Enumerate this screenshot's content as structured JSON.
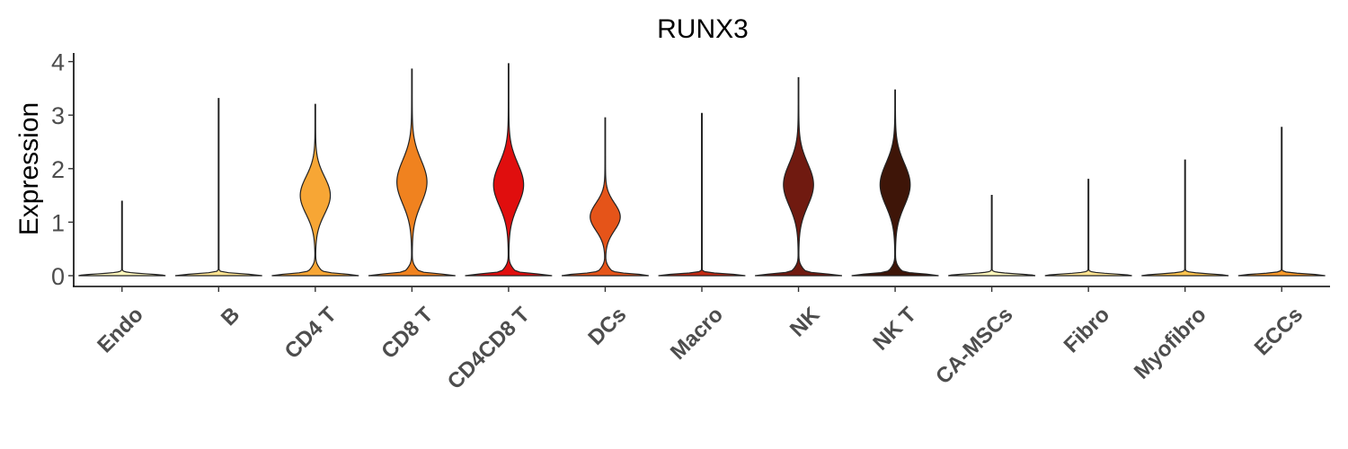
{
  "chart_data": {
    "type": "violin",
    "title": "RUNX3",
    "xlabel": "",
    "ylabel": "Expression",
    "ylim": [
      -0.18,
      4.15
    ],
    "yticks": [
      "0",
      "1",
      "2",
      "3",
      "4"
    ],
    "grid": false,
    "legend": "none",
    "categories": [
      "Endo",
      "B",
      "CD4 T",
      "CD8 T",
      "CD4CD8 T",
      "DCs",
      "Macro",
      "NK",
      "NK T",
      "CA-MSCs",
      "Fibro",
      "Myofibro",
      "ECCs"
    ],
    "colors": [
      "#FFF7BC",
      "#FEE391",
      "#F7A635",
      "#F0821F",
      "#E00E0E",
      "#E55419",
      "#C22A12",
      "#701A10",
      "#3E1508",
      "#FFF7BC",
      "#FEE391",
      "#FEC44F",
      "#FB9A29"
    ],
    "max_values": [
      1.39,
      3.31,
      3.2,
      3.86,
      3.96,
      2.95,
      3.03,
      3.7,
      3.47,
      1.5,
      1.8,
      2.16,
      2.77
    ],
    "modes": [
      [],
      [],
      [
        1.5
      ],
      [
        1.75
      ],
      [
        1.7
      ],
      [
        1.1
      ],
      [],
      [
        1.7
      ],
      [
        1.7
      ],
      [],
      [],
      [],
      []
    ]
  }
}
